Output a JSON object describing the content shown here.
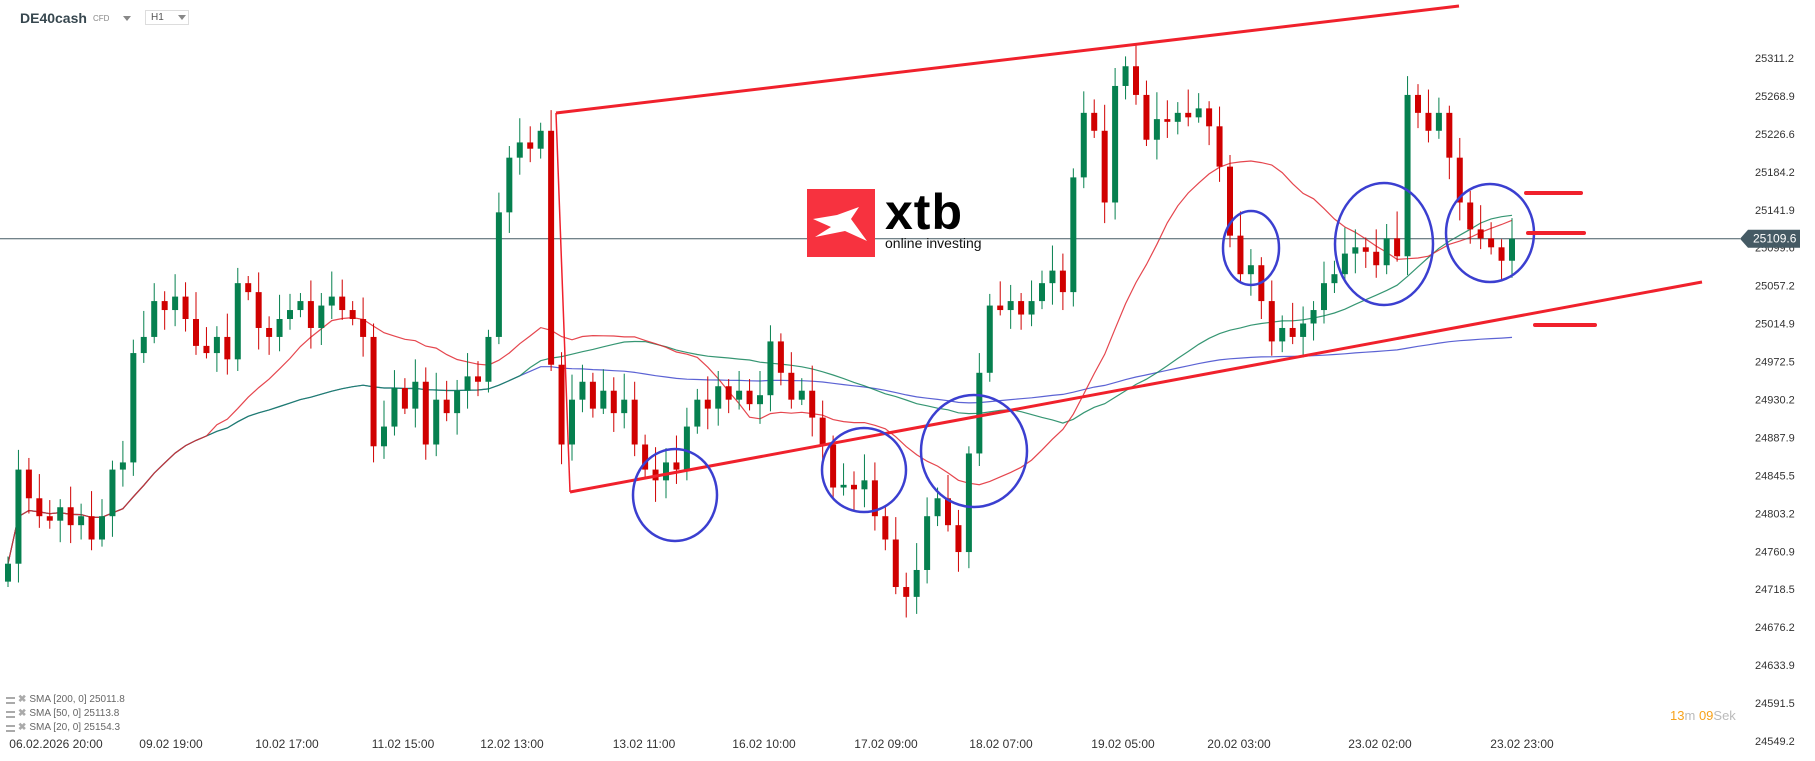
{
  "header": {
    "symbol": "DE40cash",
    "instrument_type": "CFD",
    "timeframe": "H1"
  },
  "logo": {
    "brand": "xtb",
    "tagline": "online investing",
    "color": "#f7323f"
  },
  "legend": [
    {
      "label": "SMA [200,  0] 25011.8",
      "color": "#3f48cc"
    },
    {
      "label": "SMA [50,  0] 25113.8",
      "color": "#13845b"
    },
    {
      "label": "SMA [20,  0] 25154.3",
      "color": "#e0262f"
    }
  ],
  "timer": {
    "minutes": "13",
    "m": "m",
    "seconds": "09",
    "sek": "Sek"
  },
  "colors": {
    "up": "#06804f",
    "down": "#d00000",
    "trendline": "#f0212c",
    "circle": "#3b3fd0",
    "price_line": "#455a64"
  },
  "chart_data": {
    "type": "candlestick",
    "current_price": "25109.6",
    "ylim": [
      24549.2,
      25311.2
    ],
    "y_ticks": [
      "25311.2",
      "25268.9",
      "25226.6",
      "25184.2",
      "25141.9",
      "25099.6",
      "25057.2",
      "25014.9",
      "24972.5",
      "24930.2",
      "24887.9",
      "24845.5",
      "24803.2",
      "24760.9",
      "24718.5",
      "24676.2",
      "24633.9",
      "24591.5",
      "24549.2"
    ],
    "x_ticks": [
      "06.02.2026  20:00",
      "09.02  19:00",
      "10.02  17:00",
      "11.02  15:00",
      "12.02  13:00",
      "13.02  11:00",
      "16.02  10:00",
      "17.02  09:00",
      "18.02  07:00",
      "19.02  05:00",
      "20.02  03:00",
      "23.02  02:00",
      "23.02  23:00"
    ],
    "closes": [
      24747,
      24852,
      24820,
      24800,
      24795,
      24810,
      24790,
      24800,
      24774,
      24800,
      24852,
      24860,
      24982,
      25000,
      25040,
      25030,
      25045,
      25020,
      24990,
      24982,
      25000,
      24975,
      25060,
      25050,
      25010,
      25000,
      25020,
      25030,
      25040,
      25010,
      25035,
      25045,
      25030,
      25020,
      25000,
      24878,
      24900,
      24943,
      24920,
      24950,
      24880,
      24930,
      24915,
      24940,
      24956,
      24950,
      25000,
      25139,
      25200,
      25217,
      25210,
      25230,
      24969,
      24880,
      24930,
      24950,
      24920,
      24940,
      24915,
      24930,
      24880,
      24852,
      24840,
      24860,
      24852,
      24900,
      24930,
      24920,
      24945,
      24930,
      24940,
      24925,
      24935,
      24995,
      24960,
      24930,
      24940,
      24910,
      24880,
      24832,
      24835,
      24830,
      24840,
      24800,
      24774,
      24721,
      24710,
      24740,
      24800,
      24820,
      24790,
      24760,
      24870,
      24960,
      25035,
      25030,
      25040,
      25025,
      25040,
      25060,
      25074,
      25050,
      25178,
      25250,
      25230,
      25150,
      25280,
      25302,
      25270,
      25220,
      25243,
      25240,
      25250,
      25245,
      25255,
      25235,
      25190,
      25113,
      25070,
      25080,
      25040,
      24995,
      25010,
      25000,
      25015,
      25030,
      25060,
      25070,
      25093,
      25100,
      25095,
      25080,
      25110,
      25090,
      25270,
      25250,
      25230,
      25250,
      25200,
      25150,
      25120,
      25110,
      25100,
      25085,
      25109.6
    ],
    "indicators": [
      {
        "name": "SMA 200",
        "period": 200,
        "last": 25011.8
      },
      {
        "name": "SMA 50",
        "period": 50,
        "last": 25113.8
      },
      {
        "name": "SMA 20",
        "period": 20,
        "last": 25154.3
      }
    ],
    "grid": false
  }
}
